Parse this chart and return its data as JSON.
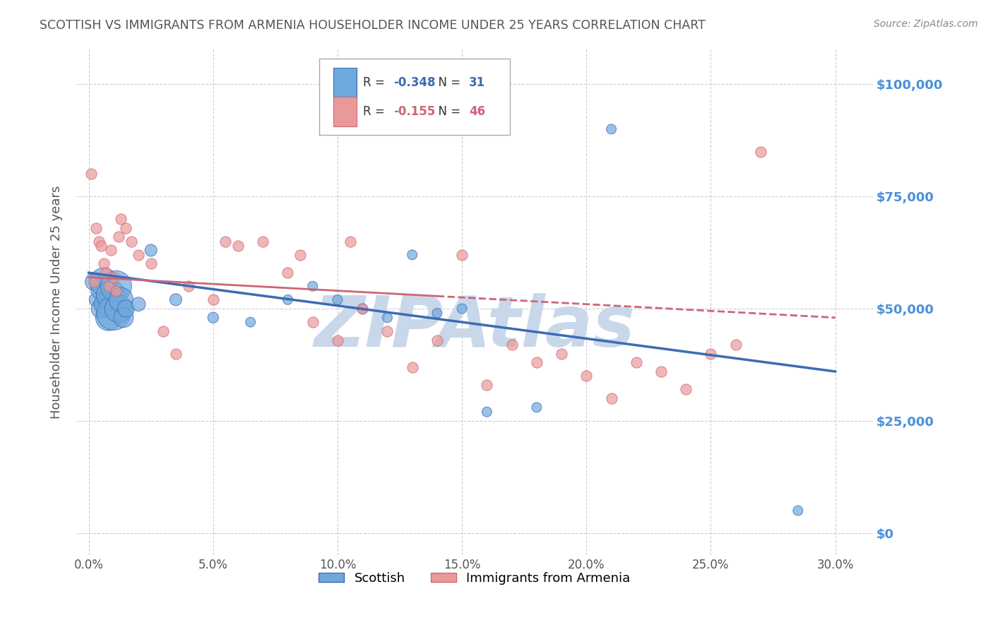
{
  "title": "SCOTTISH VS IMMIGRANTS FROM ARMENIA HOUSEHOLDER INCOME UNDER 25 YEARS CORRELATION CHART",
  "source": "Source: ZipAtlas.com",
  "ylabel": "Householder Income Under 25 years",
  "xlabel_vals": [
    0.0,
    5.0,
    10.0,
    15.0,
    20.0,
    25.0,
    30.0
  ],
  "ylabel_vals": [
    0,
    25000,
    50000,
    75000,
    100000
  ],
  "ylabel_labels": [
    "$0",
    "$25,000",
    "$50,000",
    "$75,000",
    "$100,000"
  ],
  "xlim": [
    -0.5,
    31.5
  ],
  "ylim": [
    -5000,
    108000
  ],
  "legend_label1": "Scottish",
  "legend_label2": "Immigrants from Armenia",
  "R1": -0.348,
  "N1": 31,
  "R2": -0.155,
  "N2": 46,
  "color_blue": "#6fa8dc",
  "color_pink": "#ea9999",
  "color_blue_line": "#3d6bb5",
  "color_pink_line": "#cc6677",
  "background_color": "#ffffff",
  "grid_color": "#cccccc",
  "watermark_color": "#c8d8ea",
  "title_color": "#555555",
  "right_label_color": "#4a90d9",
  "scottish_x": [
    0.2,
    0.3,
    0.4,
    0.5,
    0.6,
    0.7,
    0.8,
    0.9,
    1.0,
    1.1,
    1.2,
    1.3,
    1.4,
    1.5,
    2.0,
    2.5,
    3.5,
    5.0,
    6.5,
    8.0,
    9.0,
    10.0,
    11.0,
    12.0,
    13.0,
    14.0,
    15.0,
    16.0,
    18.0,
    21.0,
    28.5
  ],
  "scottish_y": [
    56000,
    52000,
    54000,
    50000,
    56000,
    51000,
    48000,
    53000,
    49000,
    55000,
    50000,
    52000,
    48000,
    50000,
    51000,
    63000,
    52000,
    48000,
    47000,
    52000,
    55000,
    52000,
    50000,
    48000,
    62000,
    49000,
    50000,
    27000,
    28000,
    90000,
    5000
  ],
  "scottish_size": [
    300,
    200,
    250,
    400,
    800,
    600,
    700,
    900,
    1200,
    1000,
    800,
    600,
    400,
    300,
    200,
    150,
    150,
    120,
    100,
    100,
    100,
    100,
    100,
    100,
    100,
    100,
    100,
    100,
    100,
    100,
    100
  ],
  "armenia_x": [
    0.1,
    0.2,
    0.3,
    0.4,
    0.5,
    0.6,
    0.7,
    0.8,
    0.9,
    1.0,
    1.1,
    1.2,
    1.3,
    1.5,
    1.7,
    2.0,
    2.5,
    3.0,
    3.5,
    4.0,
    5.0,
    5.5,
    6.0,
    7.0,
    8.0,
    8.5,
    9.0,
    10.0,
    10.5,
    11.0,
    12.0,
    13.0,
    14.0,
    15.0,
    16.0,
    17.0,
    18.0,
    19.0,
    20.0,
    21.0,
    22.0,
    23.0,
    24.0,
    25.0,
    26.0,
    27.0
  ],
  "armenia_y": [
    80000,
    56000,
    68000,
    65000,
    64000,
    60000,
    58000,
    55000,
    63000,
    57000,
    54000,
    66000,
    70000,
    68000,
    65000,
    62000,
    60000,
    45000,
    40000,
    55000,
    52000,
    65000,
    64000,
    65000,
    58000,
    62000,
    47000,
    43000,
    65000,
    50000,
    45000,
    37000,
    43000,
    62000,
    33000,
    42000,
    38000,
    40000,
    35000,
    30000,
    38000,
    36000,
    32000,
    40000,
    42000,
    85000
  ],
  "armenia_size": 120,
  "blue_line_x0": 0.0,
  "blue_line_y0": 58000,
  "blue_line_x1": 30.0,
  "blue_line_y1": 36000,
  "pink_line_x0": 0.0,
  "pink_line_y0": 57000,
  "pink_line_x1": 30.0,
  "pink_line_y1": 48000,
  "pink_line_solid_end_x": 14.0
}
